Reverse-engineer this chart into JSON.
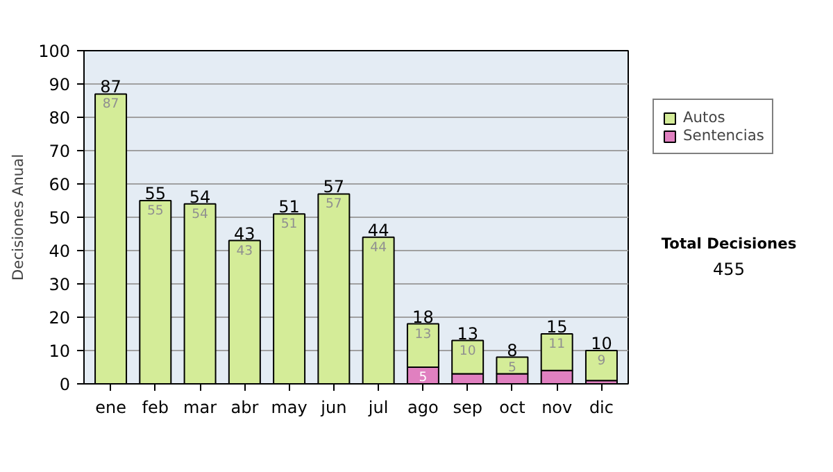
{
  "chart_data": {
    "type": "bar",
    "stacked": true,
    "ylabel": "Decisiones Anual",
    "categories": [
      "ene",
      "feb",
      "mar",
      "abr",
      "may",
      "jun",
      "jul",
      "ago",
      "sep",
      "oct",
      "nov",
      "dic"
    ],
    "series": [
      {
        "name": "Sentencias",
        "color": "#e080c0",
        "values": [
          0,
          0,
          0,
          0,
          0,
          0,
          0,
          5,
          3,
          3,
          4,
          1
        ],
        "value_labels": [
          null,
          null,
          null,
          null,
          null,
          null,
          null,
          "5",
          null,
          null,
          null,
          null
        ]
      },
      {
        "name": "Autos",
        "color": "#d4ec98",
        "values": [
          87,
          55,
          54,
          43,
          51,
          57,
          44,
          13,
          10,
          5,
          11,
          9
        ],
        "value_labels": [
          "87",
          "55",
          "54",
          "43",
          "51",
          "57",
          "44",
          "13",
          "10",
          "5",
          "11",
          "9"
        ]
      }
    ],
    "totals": [
      "87",
      "55",
      "54",
      "43",
      "51",
      "57",
      "44",
      "18",
      "13",
      "8",
      "15",
      "10"
    ],
    "ylim": [
      0,
      100
    ],
    "yticks": [
      0,
      10,
      20,
      30,
      40,
      50,
      60,
      70,
      80,
      90,
      100
    ],
    "grid": "y",
    "legend": "right",
    "annotations": [
      "Total Decisiones",
      "455"
    ]
  }
}
